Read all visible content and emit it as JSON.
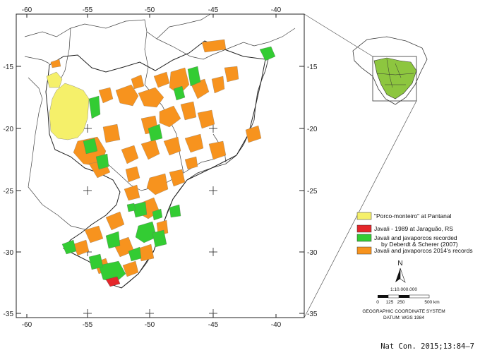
{
  "axes": {
    "top_lon": [
      "-60",
      "-55",
      "-50",
      "-45",
      "-40"
    ],
    "bottom_lon": [
      "-60",
      "-55",
      "-50",
      "-45",
      "-40"
    ],
    "left_lat": [
      "-15",
      "-20",
      "-25",
      "-30",
      "-35"
    ],
    "right_lat": [
      "-15",
      "-20",
      "-25",
      "-30",
      "-35"
    ]
  },
  "legend": [
    {
      "label": "\"Porco-monteiro\" at Pantanal",
      "color": "#f5f06a"
    },
    {
      "label": "Javali - 1989 at Jaraguão, RS",
      "color": "#e5262a"
    },
    {
      "label": "Javali and javaporcos recorded",
      "label2": "by Deberdt & Scherer (2007)",
      "color": "#33cc33"
    },
    {
      "label": "Javali and javaporcos 2014's records",
      "color": "#f7931e"
    }
  ],
  "north_arrow": {
    "letter": "N"
  },
  "scale": {
    "ratio": "1:10.000.000",
    "ticks": [
      "0",
      "125",
      "250",
      "",
      "500 km"
    ]
  },
  "crs": {
    "line1": "GEOGRAPHIC COORDINATE SYSTEM",
    "line2": "DATUM: WGS 1984"
  },
  "citation": "Nat Con. 2015;13:84–7",
  "colors": {
    "pantanal": "#f5f06a",
    "jaraguao": "#e5262a",
    "deberdt": "#33cc33",
    "records2014": "#f7931e",
    "inset_fill": "#8dc63f"
  }
}
